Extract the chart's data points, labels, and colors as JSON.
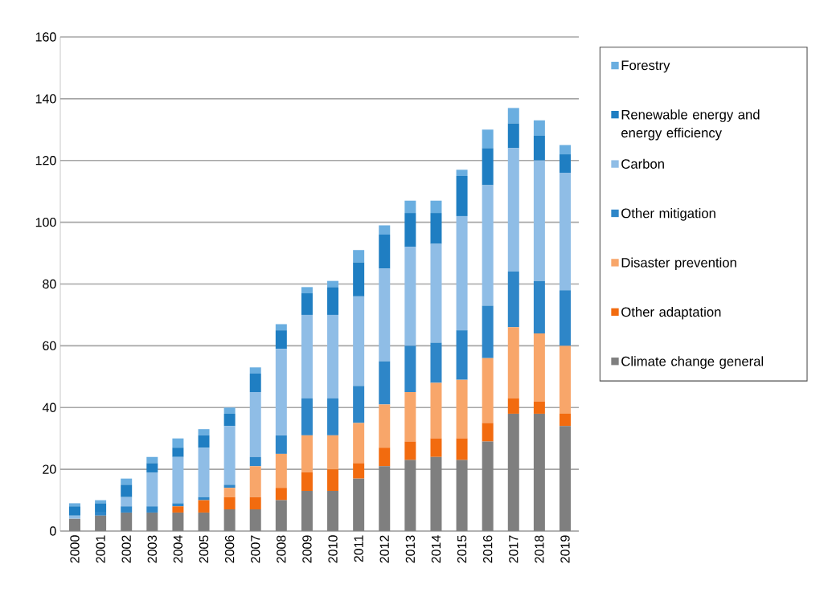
{
  "chart_data": {
    "type": "bar",
    "stacked": true,
    "categories": [
      "2000",
      "2001",
      "2002",
      "2003",
      "2004",
      "2005",
      "2006",
      "2007",
      "2008",
      "2009",
      "2010",
      "2011",
      "2012",
      "2013",
      "2014",
      "2015",
      "2016",
      "2017",
      "2018",
      "2019"
    ],
    "series": [
      {
        "name": "Climate change general",
        "color": "#7f7f7f",
        "values": [
          4,
          5,
          6,
          6,
          6,
          6,
          7,
          7,
          10,
          13,
          13,
          17,
          21,
          23,
          24,
          23,
          29,
          38,
          38,
          34
        ]
      },
      {
        "name": "Other adaptation",
        "color": "#f26b0f",
        "values": [
          0,
          0,
          0,
          0,
          2,
          4,
          4,
          4,
          4,
          6,
          7,
          5,
          6,
          6,
          6,
          7,
          6,
          5,
          4,
          4
        ]
      },
      {
        "name": "Disaster prevention",
        "color": "#f8a66a",
        "values": [
          0,
          0,
          0,
          0,
          0,
          0,
          3,
          10,
          11,
          12,
          11,
          13,
          14,
          16,
          18,
          19,
          21,
          23,
          22,
          22
        ]
      },
      {
        "name": "Other mitigation",
        "color": "#2e86c8",
        "values": [
          0,
          1,
          2,
          2,
          1,
          1,
          1,
          3,
          6,
          12,
          12,
          12,
          14,
          15,
          13,
          16,
          17,
          18,
          17,
          18
        ]
      },
      {
        "name": "Carbon",
        "color": "#8fbde6",
        "values": [
          1,
          0,
          3,
          11,
          15,
          16,
          19,
          21,
          28,
          27,
          27,
          29,
          30,
          32,
          32,
          37,
          39,
          40,
          39,
          38
        ]
      },
      {
        "name": "Renewable energy and energy efficiency",
        "color": "#1f7ec2",
        "values": [
          3,
          3,
          4,
          3,
          3,
          4,
          4,
          6,
          6,
          7,
          9,
          11,
          11,
          11,
          10,
          13,
          12,
          8,
          8,
          6
        ]
      },
      {
        "name": "Forestry",
        "color": "#6aaee0",
        "values": [
          1,
          1,
          2,
          2,
          3,
          2,
          2,
          2,
          2,
          2,
          2,
          4,
          3,
          4,
          4,
          2,
          6,
          5,
          5,
          3
        ]
      }
    ],
    "ylim": [
      0,
      160
    ],
    "yticks": [
      0,
      20,
      40,
      60,
      80,
      100,
      120,
      140,
      160
    ],
    "grid": "y",
    "legend": "right"
  }
}
